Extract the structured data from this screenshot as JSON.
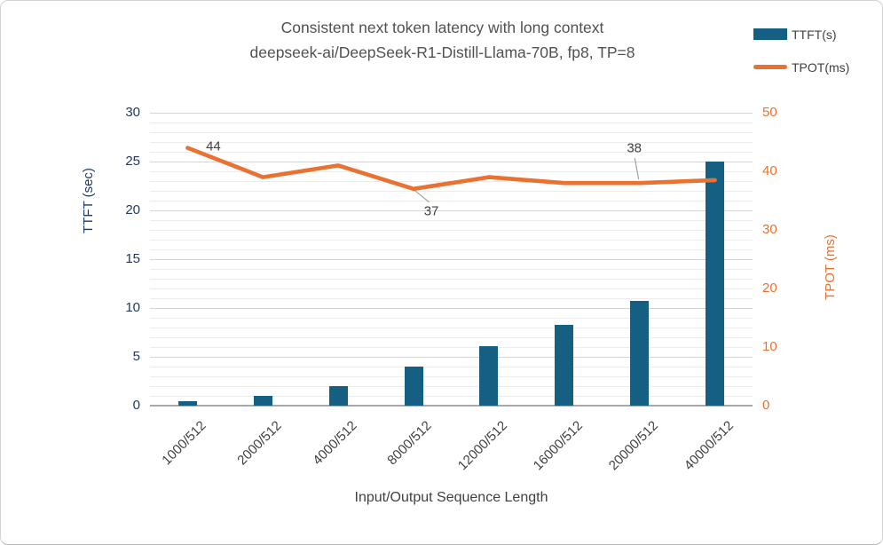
{
  "chart_data": {
    "type": "combo",
    "title_line1": "Consistent next token latency with long context",
    "title_line2": "deepseek-ai/DeepSeek-R1-Distill-Llama-70B, fp8, TP=8",
    "categories": [
      "1000/512",
      "2000/512",
      "4000/512",
      "8000/512",
      "12000/512",
      "16000/512",
      "20000/512",
      "40000/512"
    ],
    "series": [
      {
        "name": "TTFT(s)",
        "type": "bar",
        "axis": "left",
        "values": [
          0.5,
          1,
          2,
          4,
          6.1,
          8.3,
          10.7,
          25
        ]
      },
      {
        "name": "TPOT(ms)",
        "type": "line",
        "axis": "right",
        "values": [
          44,
          39,
          41,
          37,
          39,
          38,
          38,
          38.5
        ],
        "point_labels": {
          "0": "44",
          "3": "37",
          "6": "38"
        }
      }
    ],
    "left_axis": {
      "label": "TTFT (sec)",
      "min": 0,
      "max": 30,
      "ticks": [
        0,
        5,
        10,
        15,
        20,
        25,
        30
      ]
    },
    "right_axis": {
      "label": "TPOT (ms)",
      "min": 0,
      "max": 50,
      "ticks": [
        0,
        10,
        20,
        30,
        40,
        50
      ]
    },
    "x_axis": {
      "label": "Input/Output Sequence Length",
      "tick_rotation": -45
    },
    "legend": {
      "position": "top-right",
      "entries": [
        "TTFT(s)",
        "TPOT(ms)"
      ]
    },
    "grid": {
      "minor_step_left_units": 1,
      "major_step_left_units": 5,
      "grid_on": true
    },
    "colors": {
      "bar": "#156082",
      "line": "#E97132",
      "left_axis_text": "#1F3864",
      "right_axis_text": "#E97132",
      "x_axis_text": "#404040",
      "title_text": "#515151",
      "legend_text": "#404040",
      "data_label_text": "#404040",
      "grid_minor": "#ECECEC",
      "grid_major": "#D4D4D4",
      "baseline": "#A8A8A8",
      "leader_line": "#A0A0A0"
    }
  }
}
